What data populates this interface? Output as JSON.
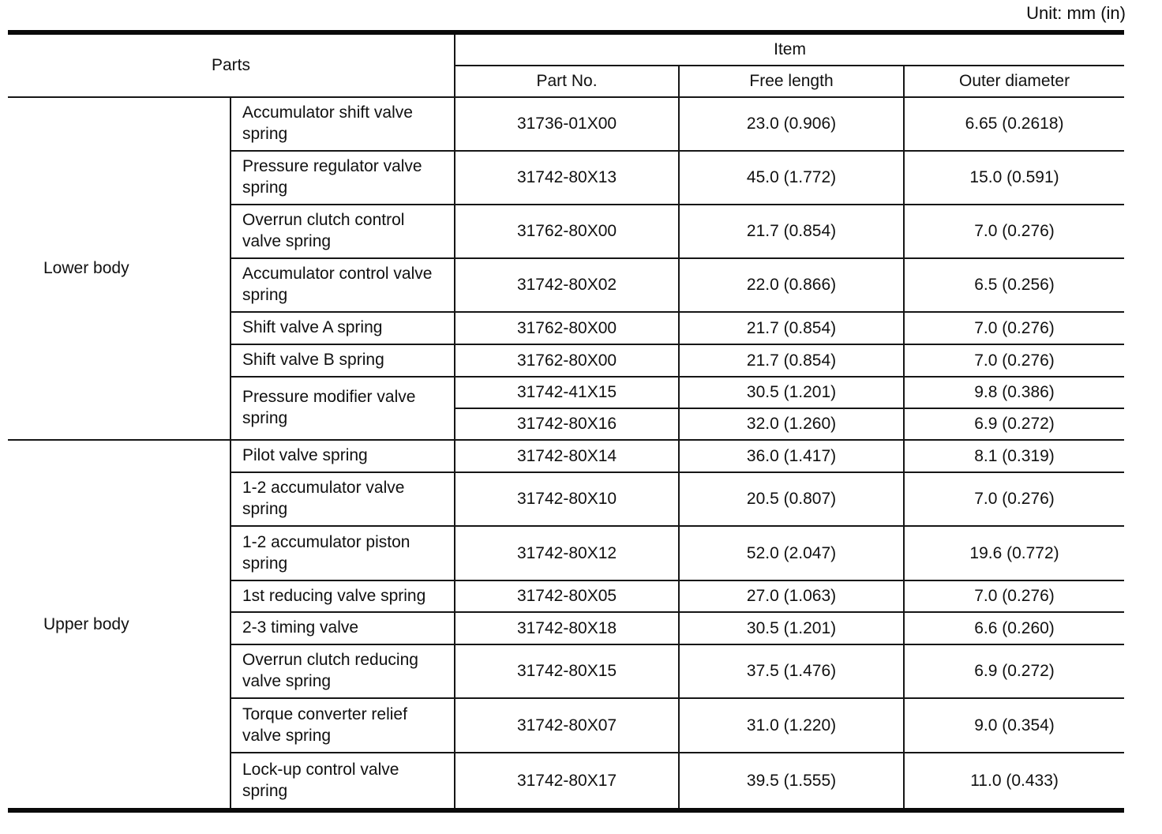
{
  "page": {
    "unit_label": "Unit: mm (in)"
  },
  "table": {
    "headers": {
      "parts": "Parts",
      "item": "Item",
      "part_no": "Part No.",
      "free_length": "Free length",
      "outer_diameter": "Outer diameter"
    },
    "sections": [
      {
        "label": "Lower body",
        "rows": [
          {
            "part": "Accumulator shift valve spring",
            "part_rowspan": 1,
            "part_no": "31736-01X00",
            "free_length": "23.0 (0.906)",
            "outer_diameter": "6.65 (0.2618)"
          },
          {
            "part": "Pressure regulator valve spring",
            "part_rowspan": 1,
            "part_no": "31742-80X13",
            "free_length": "45.0 (1.772)",
            "outer_diameter": "15.0 (0.591)"
          },
          {
            "part": "Overrun clutch control valve spring",
            "part_rowspan": 1,
            "part_no": "31762-80X00",
            "free_length": "21.7 (0.854)",
            "outer_diameter": "7.0 (0.276)"
          },
          {
            "part": "Accumulator control valve spring",
            "part_rowspan": 1,
            "part_no": "31742-80X02",
            "free_length": "22.0 (0.866)",
            "outer_diameter": "6.5 (0.256)"
          },
          {
            "part": "Shift valve A spring",
            "part_rowspan": 1,
            "part_no": "31762-80X00",
            "free_length": "21.7 (0.854)",
            "outer_diameter": "7.0 (0.276)"
          },
          {
            "part": "Shift valve B spring",
            "part_rowspan": 1,
            "part_no": "31762-80X00",
            "free_length": "21.7 (0.854)",
            "outer_diameter": "7.0 (0.276)"
          },
          {
            "part": "Pressure modifier valve spring",
            "part_rowspan": 2,
            "part_no": "31742-41X15",
            "free_length": "30.5 (1.201)",
            "outer_diameter": "9.8 (0.386)"
          },
          {
            "part": null,
            "part_rowspan": 0,
            "part_no": "31742-80X16",
            "free_length": "32.0 (1.260)",
            "outer_diameter": "6.9 (0.272)"
          }
        ]
      },
      {
        "label": "Upper body",
        "rows": [
          {
            "part": "Pilot valve spring",
            "part_rowspan": 1,
            "part_no": "31742-80X14",
            "free_length": "36.0 (1.417)",
            "outer_diameter": "8.1 (0.319)"
          },
          {
            "part": "1-2 accumulator valve spring",
            "part_rowspan": 1,
            "part_no": "31742-80X10",
            "free_length": "20.5 (0.807)",
            "outer_diameter": "7.0 (0.276)"
          },
          {
            "part": "1-2 accumulator piston spring",
            "part_rowspan": 1,
            "part_no": "31742-80X12",
            "free_length": "52.0 (2.047)",
            "outer_diameter": "19.6 (0.772)"
          },
          {
            "part": "1st reducing valve spring",
            "part_rowspan": 1,
            "part_no": "31742-80X05",
            "free_length": "27.0 (1.063)",
            "outer_diameter": "7.0 (0.276)"
          },
          {
            "part": "2-3 timing valve",
            "part_rowspan": 1,
            "part_no": "31742-80X18",
            "free_length": "30.5 (1.201)",
            "outer_diameter": "6.6 (0.260)"
          },
          {
            "part": "Overrun clutch reducing valve spring",
            "part_rowspan": 1,
            "part_no": "31742-80X15",
            "free_length": "37.5 (1.476)",
            "outer_diameter": "6.9 (0.272)"
          },
          {
            "part": "Torque converter relief valve spring",
            "part_rowspan": 1,
            "part_no": "31742-80X07",
            "free_length": "31.0 (1.220)",
            "outer_diameter": "9.0 (0.354)"
          },
          {
            "part": "Lock-up control valve spring",
            "part_rowspan": 1,
            "part_no": "31742-80X17",
            "free_length": "39.5 (1.555)",
            "outer_diameter": "11.0 (0.433)"
          }
        ]
      }
    ]
  }
}
